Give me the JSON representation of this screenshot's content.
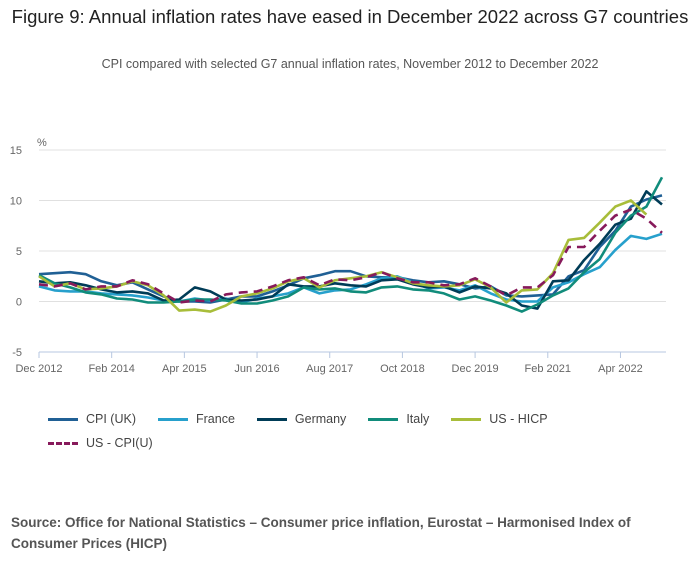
{
  "title": "Figure 9: Annual inflation rates have eased in December 2022 across G7 countries",
  "subtitle": "CPI compared with selected G7 annual inflation rates, November 2012 to December 2022",
  "source": "Source: Office for National Statistics – Consumer price inflation, Eurostat – Harmonised Index of Consumer Prices (HICP)",
  "chart_data": {
    "type": "line",
    "ylabel": "%",
    "ylim": [
      -5,
      15
    ],
    "yticks": [
      "15",
      "10",
      "5",
      "0",
      "-5"
    ],
    "ytick_values": [
      15,
      10,
      5,
      0,
      -5
    ],
    "xtick_labels": [
      "Dec 2012",
      "Feb 2014",
      "Apr 2015",
      "Jun 2016",
      "Aug 2017",
      "Oct 2018",
      "Dec 2019",
      "Feb 2021",
      "Apr 2022"
    ],
    "xtick_months_from_start": [
      0,
      14,
      28,
      42,
      56,
      70,
      84,
      98,
      112
    ],
    "grid": true,
    "legend": "bottom",
    "series": [
      {
        "name": "CPI (UK)",
        "color": "#206095",
        "dash": false,
        "values": [
          2.7,
          2.8,
          2.9,
          2.7,
          2.0,
          1.6,
          1.9,
          1.2,
          0.5,
          0.0,
          0.0,
          -0.1,
          0.2,
          0.5,
          0.5,
          1.0,
          1.6,
          2.3,
          2.6,
          3.0,
          3.0,
          2.5,
          2.4,
          2.4,
          2.1,
          1.9,
          2.0,
          1.7,
          1.3,
          1.5,
          0.6,
          0.5,
          0.6,
          0.7,
          2.5,
          3.1,
          5.4,
          7.0,
          9.4,
          10.1,
          10.5
        ]
      },
      {
        "name": "France",
        "color": "#27a0cc",
        "dash": false,
        "values": [
          1.5,
          1.1,
          1.0,
          1.0,
          0.8,
          0.7,
          0.6,
          0.4,
          0.1,
          0.0,
          0.3,
          0.1,
          0.3,
          -0.1,
          0.3,
          0.5,
          0.8,
          1.4,
          0.8,
          1.1,
          1.2,
          1.7,
          2.3,
          2.5,
          1.9,
          1.3,
          1.4,
          1.1,
          1.6,
          0.8,
          0.2,
          0.0,
          0.0,
          1.4,
          1.9,
          2.7,
          3.4,
          5.1,
          6.5,
          6.2,
          6.7
        ]
      },
      {
        "name": "Germany",
        "color": "#003c57",
        "dash": false,
        "values": [
          2.0,
          1.8,
          1.9,
          1.6,
          1.2,
          0.9,
          1.0,
          0.8,
          0.1,
          0.2,
          1.4,
          1.0,
          0.2,
          0.1,
          0.2,
          0.5,
          1.7,
          1.5,
          1.5,
          1.8,
          1.6,
          1.5,
          2.1,
          2.2,
          1.7,
          1.4,
          1.5,
          0.9,
          1.5,
          1.3,
          0.8,
          -0.4,
          -0.7,
          2.0,
          2.1,
          4.1,
          5.7,
          7.6,
          8.2,
          10.9,
          9.6
        ]
      },
      {
        "name": "Italy",
        "color": "#118c7b",
        "dash": false,
        "values": [
          2.6,
          1.8,
          1.4,
          0.9,
          0.7,
          0.3,
          0.2,
          -0.1,
          -0.1,
          0.0,
          0.2,
          0.2,
          0.1,
          -0.2,
          -0.2,
          0.1,
          0.5,
          1.4,
          1.2,
          1.3,
          1.0,
          0.9,
          1.4,
          1.5,
          1.2,
          1.1,
          0.8,
          0.2,
          0.5,
          0.1,
          -0.4,
          -1.0,
          -0.3,
          0.6,
          1.3,
          2.9,
          4.2,
          6.8,
          8.5,
          9.4,
          12.3
        ]
      },
      {
        "name": "US - HICP",
        "color": "#a8bd3a",
        "dash": false,
        "values": [
          2.5,
          1.5,
          1.8,
          1.2,
          1.3,
          1.5,
          2.0,
          1.6,
          0.6,
          -0.9,
          -0.8,
          -1.0,
          -0.4,
          0.5,
          0.8,
          1.3,
          2.0,
          2.3,
          1.4,
          2.1,
          2.3,
          2.5,
          2.9,
          2.4,
          1.8,
          1.6,
          1.5,
          1.6,
          2.2,
          1.4,
          -0.1,
          1.1,
          1.2,
          2.8,
          6.1,
          6.3,
          7.8,
          9.4,
          10.0,
          8.6,
          null
        ]
      },
      {
        "name": "US - CPI(U)",
        "color": "#871a5b",
        "dash": true,
        "values": [
          1.7,
          1.5,
          1.8,
          1.2,
          1.5,
          1.5,
          2.1,
          1.7,
          0.8,
          -0.1,
          0.1,
          0.0,
          0.7,
          0.9,
          1.0,
          1.5,
          2.1,
          2.4,
          1.6,
          2.2,
          2.1,
          2.4,
          2.9,
          2.3,
          1.9,
          1.9,
          1.6,
          1.7,
          2.3,
          1.5,
          0.6,
          1.4,
          1.4,
          2.6,
          5.4,
          5.4,
          7.0,
          8.5,
          9.1,
          8.2,
          6.8
        ]
      }
    ]
  }
}
